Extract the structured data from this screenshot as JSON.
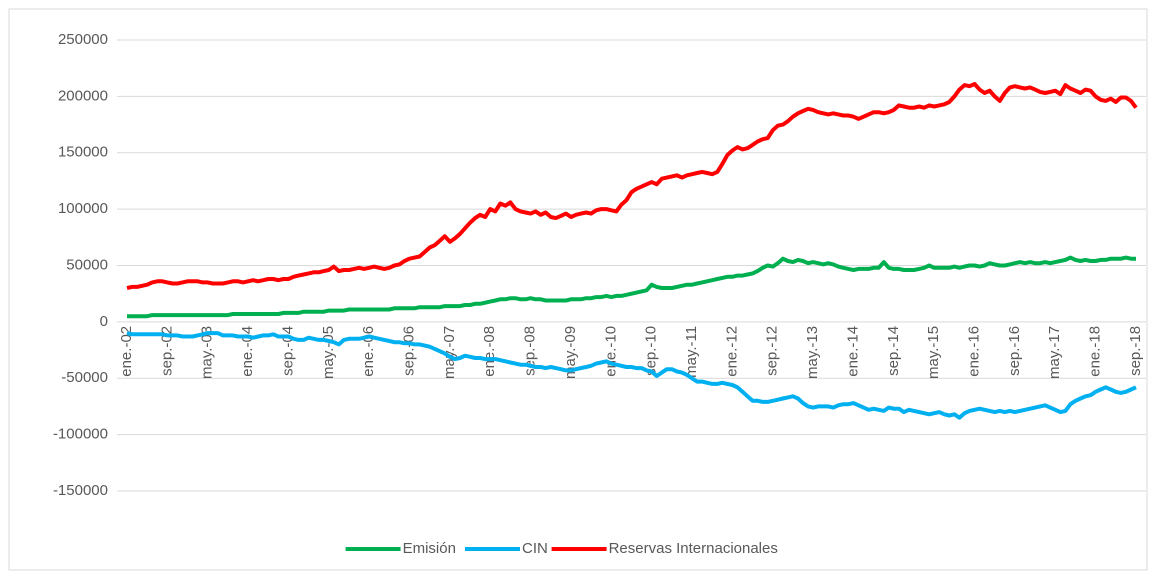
{
  "chart_data": {
    "type": "line",
    "categories": [
      "ene.-02",
      null,
      null,
      null,
      null,
      null,
      null,
      null,
      "sep.-02",
      null,
      null,
      null,
      null,
      null,
      null,
      null,
      "may.-03",
      null,
      null,
      null,
      null,
      null,
      null,
      null,
      "ene.-04",
      null,
      null,
      null,
      null,
      null,
      null,
      null,
      "sep.-04",
      null,
      null,
      null,
      null,
      null,
      null,
      null,
      "may.-05",
      null,
      null,
      null,
      null,
      null,
      null,
      null,
      "ene.-06",
      null,
      null,
      null,
      null,
      null,
      null,
      null,
      "sep.-06",
      null,
      null,
      null,
      null,
      null,
      null,
      null,
      "may.-07",
      null,
      null,
      null,
      null,
      null,
      null,
      null,
      "ene.-08",
      null,
      null,
      null,
      null,
      null,
      null,
      null,
      "sep.-08",
      null,
      null,
      null,
      null,
      null,
      null,
      null,
      "may.-09",
      null,
      null,
      null,
      null,
      null,
      null,
      null,
      "ene.-10",
      null,
      null,
      null,
      null,
      null,
      null,
      null,
      "sep.-10",
      null,
      null,
      null,
      null,
      null,
      null,
      null,
      "may.-11",
      null,
      null,
      null,
      null,
      null,
      null,
      null,
      "ene.-12",
      null,
      null,
      null,
      null,
      null,
      null,
      null,
      "sep.-12",
      null,
      null,
      null,
      null,
      null,
      null,
      null,
      "may.-13",
      null,
      null,
      null,
      null,
      null,
      null,
      null,
      "ene.-14",
      null,
      null,
      null,
      null,
      null,
      null,
      null,
      "sep.-14",
      null,
      null,
      null,
      null,
      null,
      null,
      null,
      "may.-15",
      null,
      null,
      null,
      null,
      null,
      null,
      null,
      "ene.-16",
      null,
      null,
      null,
      null,
      null,
      null,
      null,
      "sep.-16",
      null,
      null,
      null,
      null,
      null,
      null,
      null,
      "may.-17",
      null,
      null,
      null,
      null,
      null,
      null,
      null,
      "ene.-18",
      null,
      null,
      null,
      null,
      null,
      null,
      null,
      "sep.-18"
    ],
    "series": [
      {
        "name": "Emisión",
        "color": "#00b050",
        "values": [
          5000,
          5000,
          5000,
          5000,
          5000,
          6000,
          6000,
          6000,
          6000,
          6000,
          6000,
          6000,
          6000,
          6000,
          6000,
          6000,
          6000,
          6000,
          6000,
          6000,
          6000,
          7000,
          7000,
          7000,
          7000,
          7000,
          7000,
          7000,
          7000,
          7000,
          7000,
          8000,
          8000,
          8000,
          8000,
          9000,
          9000,
          9000,
          9000,
          9000,
          10000,
          10000,
          10000,
          10000,
          11000,
          11000,
          11000,
          11000,
          11000,
          11000,
          11000,
          11000,
          11000,
          12000,
          12000,
          12000,
          12000,
          12000,
          13000,
          13000,
          13000,
          13000,
          13000,
          14000,
          14000,
          14000,
          14000,
          15000,
          15000,
          16000,
          16000,
          17000,
          18000,
          19000,
          20000,
          20000,
          21000,
          21000,
          20000,
          20000,
          21000,
          20000,
          20000,
          19000,
          19000,
          19000,
          19000,
          19000,
          20000,
          20000,
          20000,
          21000,
          21000,
          22000,
          22000,
          23000,
          22000,
          23000,
          23000,
          24000,
          25000,
          26000,
          27000,
          28000,
          33000,
          31000,
          30000,
          30000,
          30000,
          31000,
          32000,
          33000,
          33000,
          34000,
          35000,
          36000,
          37000,
          38000,
          39000,
          40000,
          40000,
          41000,
          41000,
          42000,
          43000,
          45000,
          48000,
          50000,
          49000,
          52000,
          56000,
          54000,
          53000,
          55000,
          54000,
          52000,
          53000,
          52000,
          51000,
          52000,
          51000,
          49000,
          48000,
          47000,
          46000,
          47000,
          47000,
          47000,
          48000,
          48000,
          53000,
          48000,
          47000,
          47000,
          46000,
          46000,
          46000,
          47000,
          48000,
          50000,
          48000,
          48000,
          48000,
          48000,
          49000,
          48000,
          49000,
          50000,
          50000,
          49000,
          50000,
          52000,
          51000,
          50000,
          50000,
          51000,
          52000,
          53000,
          52000,
          53000,
          52000,
          52000,
          53000,
          52000,
          53000,
          54000,
          55000,
          57000,
          55000,
          54000,
          55000,
          54000,
          54000,
          55000,
          55000,
          56000,
          56000,
          56000,
          57000,
          56000,
          56000
        ]
      },
      {
        "name": "CIN",
        "color": "#00b0f0",
        "values": [
          -10000,
          -11000,
          -11000,
          -11000,
          -11000,
          -11000,
          -11000,
          -11000,
          -12000,
          -12000,
          -12000,
          -13000,
          -13000,
          -13000,
          -12000,
          -11000,
          -10000,
          -10000,
          -10000,
          -12000,
          -12000,
          -12000,
          -13000,
          -13000,
          -13000,
          -14000,
          -13000,
          -12000,
          -12000,
          -11000,
          -13000,
          -13000,
          -13000,
          -15000,
          -16000,
          -16000,
          -14000,
          -15000,
          -16000,
          -16000,
          -17000,
          -18000,
          -20000,
          -16000,
          -15000,
          -15000,
          -15000,
          -14000,
          -13000,
          -14000,
          -15000,
          -16000,
          -17000,
          -18000,
          -18000,
          -19000,
          -19000,
          -20000,
          -20000,
          -21000,
          -22000,
          -24000,
          -26000,
          -28000,
          -31000,
          -33000,
          -32000,
          -30000,
          -31000,
          -32000,
          -32000,
          -33000,
          -33000,
          -33000,
          -34000,
          -35000,
          -36000,
          -37000,
          -38000,
          -38000,
          -39000,
          -40000,
          -40000,
          -41000,
          -40000,
          -41000,
          -42000,
          -43000,
          -43000,
          -42000,
          -41000,
          -40000,
          -39000,
          -37000,
          -36000,
          -35000,
          -37000,
          -38000,
          -39000,
          -40000,
          -40000,
          -41000,
          -41000,
          -43000,
          -44000,
          -48000,
          -45000,
          -42000,
          -42000,
          -44000,
          -45000,
          -47000,
          -50000,
          -53000,
          -53000,
          -54000,
          -55000,
          -55000,
          -54000,
          -55000,
          -56000,
          -58000,
          -62000,
          -66000,
          -70000,
          -70000,
          -71000,
          -71000,
          -70000,
          -69000,
          -68000,
          -67000,
          -66000,
          -68000,
          -72000,
          -75000,
          -76000,
          -75000,
          -75000,
          -75000,
          -76000,
          -74000,
          -73000,
          -73000,
          -72000,
          -74000,
          -76000,
          -78000,
          -77000,
          -78000,
          -79000,
          -76000,
          -77000,
          -77000,
          -80000,
          -78000,
          -79000,
          -80000,
          -81000,
          -82000,
          -81000,
          -80000,
          -82000,
          -83000,
          -82000,
          -85000,
          -81000,
          -79000,
          -78000,
          -77000,
          -78000,
          -79000,
          -80000,
          -79000,
          -80000,
          -79000,
          -80000,
          -79000,
          -78000,
          -77000,
          -76000,
          -75000,
          -74000,
          -76000,
          -78000,
          -80000,
          -79000,
          -73000,
          -70000,
          -68000,
          -66000,
          -65000,
          -62000,
          -60000,
          -58000,
          -60000,
          -62000,
          -63000,
          -62000,
          -60000,
          -58000
        ]
      },
      {
        "name": "Reservas Internacionales",
        "color": "#ff0000",
        "values": [
          30000,
          31000,
          31000,
          32000,
          33000,
          35000,
          36000,
          36000,
          35000,
          34000,
          34000,
          35000,
          36000,
          36000,
          36000,
          35000,
          35000,
          34000,
          34000,
          34000,
          35000,
          36000,
          36000,
          35000,
          36000,
          37000,
          36000,
          37000,
          38000,
          38000,
          37000,
          38000,
          38000,
          40000,
          41000,
          42000,
          43000,
          44000,
          44000,
          45000,
          46000,
          49000,
          45000,
          46000,
          46000,
          47000,
          48000,
          47000,
          48000,
          49000,
          48000,
          47000,
          48000,
          50000,
          51000,
          54000,
          56000,
          57000,
          58000,
          62000,
          66000,
          68000,
          72000,
          76000,
          71000,
          74000,
          78000,
          83000,
          88000,
          92000,
          95000,
          93000,
          100000,
          98000,
          105000,
          103000,
          106000,
          100000,
          98000,
          97000,
          96000,
          98000,
          95000,
          97000,
          93000,
          92000,
          94000,
          96000,
          93000,
          95000,
          96000,
          97000,
          96000,
          99000,
          100000,
          100000,
          99000,
          98000,
          104000,
          108000,
          115000,
          118000,
          120000,
          122000,
          124000,
          122000,
          127000,
          128000,
          129000,
          130000,
          128000,
          130000,
          131000,
          132000,
          133000,
          132000,
          131000,
          133000,
          140000,
          148000,
          152000,
          155000,
          153000,
          154000,
          157000,
          160000,
          162000,
          163000,
          170000,
          174000,
          175000,
          178000,
          182000,
          185000,
          187000,
          189000,
          188000,
          186000,
          185000,
          184000,
          185000,
          184000,
          183000,
          183000,
          182000,
          180000,
          182000,
          184000,
          186000,
          186000,
          185000,
          186000,
          188000,
          192000,
          191000,
          190000,
          190000,
          191000,
          190000,
          192000,
          191000,
          192000,
          193000,
          195000,
          200000,
          206000,
          210000,
          209000,
          211000,
          206000,
          203000,
          205000,
          200000,
          196000,
          203000,
          208000,
          209000,
          208000,
          207000,
          208000,
          206000,
          204000,
          203000,
          204000,
          205000,
          202000,
          210000,
          207000,
          205000,
          203000,
          206000,
          205000,
          200000,
          197000,
          196000,
          198000,
          195000,
          199000,
          199000,
          196000,
          190000
        ]
      }
    ],
    "ylim": [
      -150000,
      250000
    ],
    "yticks": [
      -150000,
      -100000,
      -50000,
      0,
      50000,
      100000,
      150000,
      200000,
      250000
    ],
    "grid": true,
    "legend": "bottom"
  }
}
